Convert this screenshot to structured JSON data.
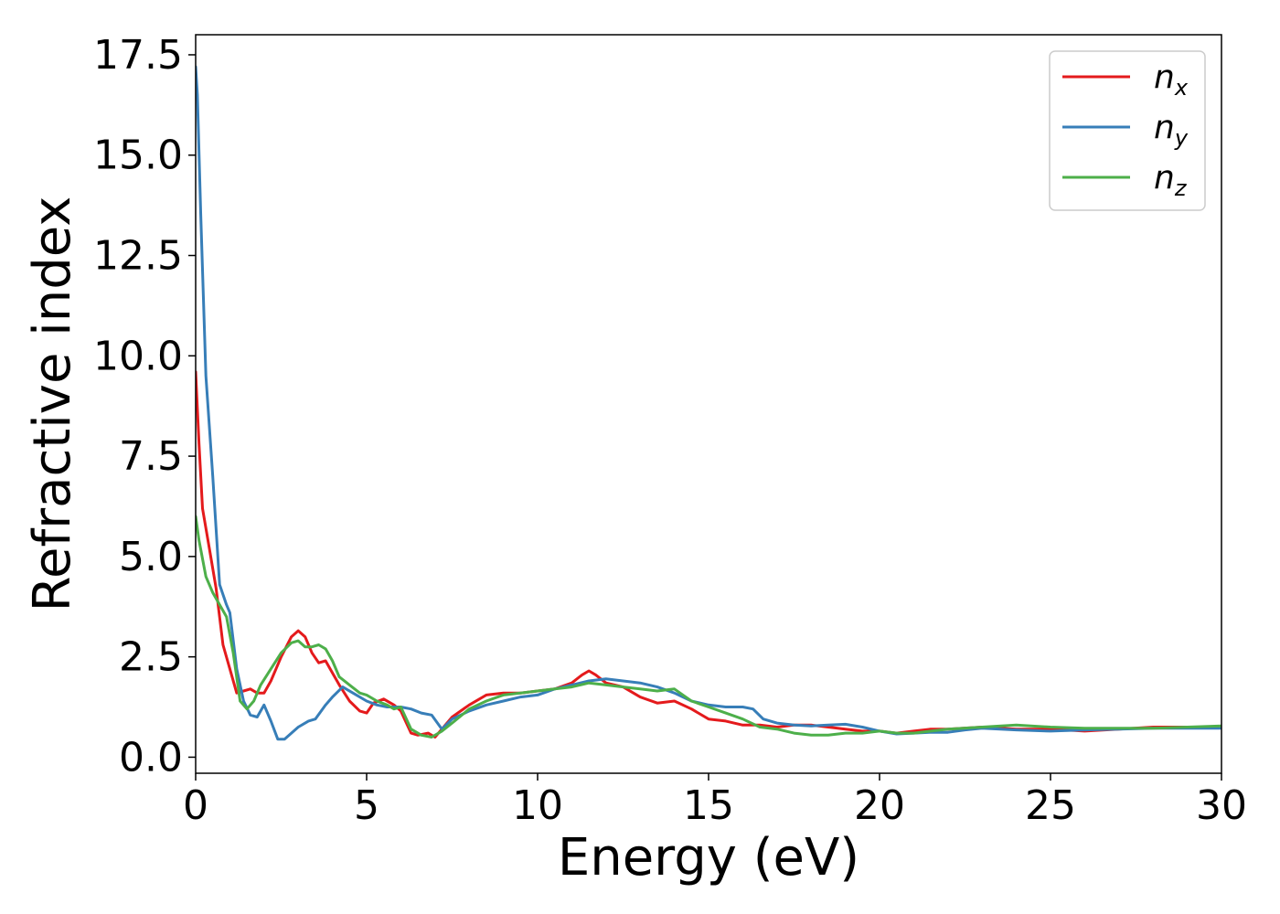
{
  "chart_data": {
    "type": "line",
    "xlabel": "Energy (eV)",
    "ylabel": "Refractive index",
    "xlim": [
      0,
      30
    ],
    "ylim": [
      -0.4,
      18.0
    ],
    "xticks": [
      0,
      5,
      10,
      15,
      20,
      25,
      30
    ],
    "yticks": [
      0.0,
      2.5,
      5.0,
      7.5,
      10.0,
      12.5,
      15.0,
      17.5
    ],
    "xtick_labels": [
      "0",
      "5",
      "10",
      "15",
      "20",
      "25",
      "30"
    ],
    "ytick_labels": [
      "0.0",
      "2.5",
      "5.0",
      "7.5",
      "10.0",
      "12.5",
      "15.0",
      "17.5"
    ],
    "grid": false,
    "legend_position": "top-right",
    "series": [
      {
        "name": "n_x",
        "legend_base": "n",
        "legend_sub": "x",
        "color": "#e41a1c",
        "x": [
          0.0,
          0.1,
          0.2,
          0.4,
          0.6,
          0.8,
          1.0,
          1.2,
          1.4,
          1.6,
          1.8,
          2.0,
          2.2,
          2.5,
          2.8,
          3.0,
          3.2,
          3.4,
          3.6,
          3.8,
          4.0,
          4.2,
          4.5,
          4.8,
          5.0,
          5.2,
          5.5,
          5.8,
          6.0,
          6.3,
          6.5,
          6.8,
          7.0,
          7.3,
          7.5,
          8.0,
          8.5,
          9.0,
          9.5,
          10.0,
          10.5,
          11.0,
          11.3,
          11.5,
          11.7,
          12.0,
          12.5,
          13.0,
          13.5,
          14.0,
          14.5,
          15.0,
          15.5,
          16.0,
          16.5,
          17.0,
          17.5,
          18.0,
          18.5,
          19.0,
          19.5,
          20.0,
          20.5,
          21.0,
          21.5,
          22.0,
          23.0,
          24.0,
          25.0,
          26.0,
          27.0,
          28.0,
          29.0,
          30.0
        ],
        "y": [
          9.6,
          7.8,
          6.2,
          5.2,
          4.2,
          2.8,
          2.2,
          1.6,
          1.65,
          1.7,
          1.6,
          1.6,
          1.9,
          2.5,
          3.0,
          3.15,
          3.0,
          2.6,
          2.35,
          2.4,
          2.1,
          1.8,
          1.4,
          1.15,
          1.1,
          1.35,
          1.45,
          1.3,
          1.15,
          0.6,
          0.55,
          0.6,
          0.5,
          0.8,
          1.0,
          1.3,
          1.55,
          1.6,
          1.6,
          1.65,
          1.7,
          1.85,
          2.05,
          2.15,
          2.05,
          1.85,
          1.75,
          1.5,
          1.35,
          1.4,
          1.2,
          0.95,
          0.9,
          0.8,
          0.8,
          0.75,
          0.8,
          0.8,
          0.75,
          0.7,
          0.65,
          0.65,
          0.6,
          0.65,
          0.7,
          0.7,
          0.75,
          0.7,
          0.7,
          0.65,
          0.7,
          0.75,
          0.75,
          0.75
        ]
      },
      {
        "name": "n_y",
        "legend_base": "n",
        "legend_sub": "y",
        "color": "#377eb8",
        "x": [
          0.0,
          0.05,
          0.15,
          0.3,
          0.5,
          0.7,
          0.9,
          1.0,
          1.2,
          1.4,
          1.6,
          1.8,
          2.0,
          2.2,
          2.4,
          2.6,
          2.8,
          3.0,
          3.3,
          3.5,
          3.8,
          4.0,
          4.3,
          4.6,
          5.0,
          5.3,
          5.6,
          6.0,
          6.3,
          6.6,
          6.9,
          7.2,
          7.5,
          8.0,
          8.5,
          9.0,
          9.5,
          10.0,
          10.5,
          11.0,
          11.5,
          12.0,
          12.5,
          13.0,
          13.5,
          14.0,
          14.5,
          15.0,
          15.5,
          16.0,
          16.3,
          16.6,
          17.0,
          17.5,
          18.0,
          18.5,
          19.0,
          19.5,
          20.0,
          20.5,
          21.0,
          21.5,
          22.0,
          22.5,
          23.0,
          24.0,
          25.0,
          26.0,
          27.0,
          28.0,
          29.0,
          30.0
        ],
        "y": [
          17.2,
          16.5,
          13.5,
          9.5,
          7.0,
          4.3,
          3.8,
          3.6,
          2.2,
          1.4,
          1.05,
          1.0,
          1.3,
          0.9,
          0.45,
          0.45,
          0.6,
          0.75,
          0.9,
          0.95,
          1.3,
          1.5,
          1.75,
          1.6,
          1.4,
          1.3,
          1.25,
          1.25,
          1.2,
          1.1,
          1.05,
          0.7,
          0.95,
          1.15,
          1.3,
          1.4,
          1.5,
          1.55,
          1.7,
          1.8,
          1.9,
          1.95,
          1.9,
          1.85,
          1.75,
          1.6,
          1.4,
          1.3,
          1.25,
          1.25,
          1.2,
          0.95,
          0.85,
          0.8,
          0.78,
          0.8,
          0.82,
          0.75,
          0.65,
          0.58,
          0.6,
          0.62,
          0.62,
          0.68,
          0.72,
          0.68,
          0.65,
          0.68,
          0.7,
          0.72,
          0.72,
          0.72
        ]
      },
      {
        "name": "n_z",
        "legend_base": "n",
        "legend_sub": "z",
        "color": "#4daf4a",
        "x": [
          0.0,
          0.1,
          0.3,
          0.5,
          0.7,
          0.9,
          1.1,
          1.3,
          1.5,
          1.7,
          1.9,
          2.2,
          2.5,
          2.8,
          3.0,
          3.2,
          3.4,
          3.6,
          3.8,
          4.0,
          4.2,
          4.5,
          4.8,
          5.0,
          5.3,
          5.6,
          5.8,
          6.0,
          6.3,
          6.6,
          6.9,
          7.2,
          7.5,
          8.0,
          8.5,
          9.0,
          9.5,
          10.0,
          10.5,
          11.0,
          11.5,
          12.0,
          12.5,
          13.0,
          13.5,
          14.0,
          14.5,
          15.0,
          15.5,
          16.0,
          16.5,
          17.0,
          17.5,
          18.0,
          18.5,
          19.0,
          19.5,
          20.0,
          20.5,
          21.0,
          21.5,
          22.0,
          23.0,
          24.0,
          25.0,
          26.0,
          27.0,
          28.0,
          29.0,
          30.0
        ],
        "y": [
          6.0,
          5.4,
          4.5,
          4.1,
          3.8,
          3.5,
          2.6,
          1.4,
          1.2,
          1.4,
          1.8,
          2.2,
          2.6,
          2.85,
          2.9,
          2.75,
          2.75,
          2.8,
          2.7,
          2.4,
          2.0,
          1.8,
          1.6,
          1.55,
          1.4,
          1.3,
          1.2,
          1.25,
          0.7,
          0.55,
          0.5,
          0.65,
          0.85,
          1.2,
          1.4,
          1.55,
          1.6,
          1.65,
          1.7,
          1.75,
          1.85,
          1.8,
          1.75,
          1.7,
          1.65,
          1.7,
          1.4,
          1.25,
          1.1,
          0.95,
          0.75,
          0.7,
          0.6,
          0.55,
          0.55,
          0.6,
          0.6,
          0.65,
          0.6,
          0.6,
          0.65,
          0.7,
          0.75,
          0.8,
          0.75,
          0.72,
          0.72,
          0.72,
          0.75,
          0.78
        ]
      }
    ]
  }
}
